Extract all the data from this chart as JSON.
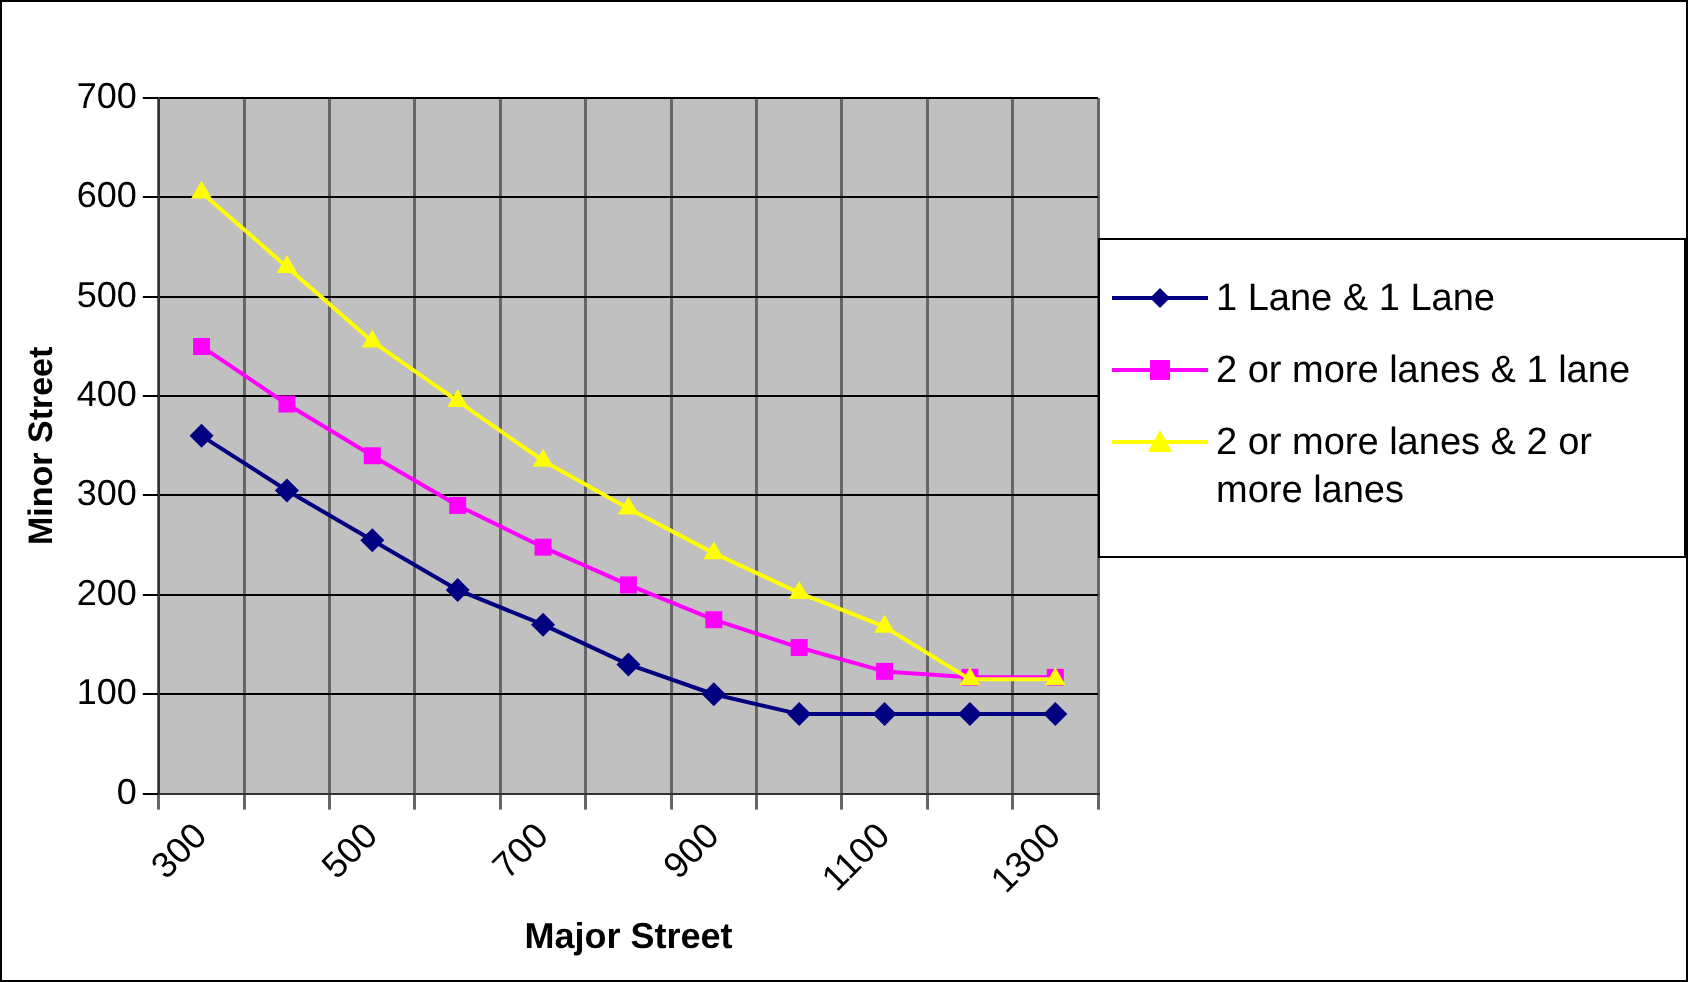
{
  "chart_data": {
    "type": "line",
    "xlabel": "Major Street",
    "ylabel": "Minor Street",
    "categories": [
      "300",
      null,
      "500",
      null,
      "700",
      null,
      "900",
      null,
      "1100",
      null,
      "1300"
    ],
    "series": [
      {
        "name": "1 Lane & 1 Lane",
        "color": "#000080",
        "marker": "diamond",
        "values": [
          360,
          305,
          255,
          205,
          170,
          130,
          100,
          80,
          80,
          80,
          80
        ]
      },
      {
        "name": "2 or more lanes & 1 lane",
        "color": "#ff00ff",
        "marker": "square",
        "values": [
          450,
          392,
          340,
          290,
          248,
          210,
          175,
          147,
          123,
          117,
          117
        ]
      },
      {
        "name": "2 or more lanes & 2 or more lanes",
        "color": "#ffff00",
        "marker": "triangle",
        "values": [
          605,
          530,
          455,
          395,
          335,
          287,
          242,
          202,
          168,
          115,
          115
        ]
      }
    ],
    "ylim": [
      0,
      700
    ],
    "yticks": [
      0,
      100,
      200,
      300,
      400,
      500,
      600,
      700
    ],
    "grid": true,
    "legend": "right"
  }
}
